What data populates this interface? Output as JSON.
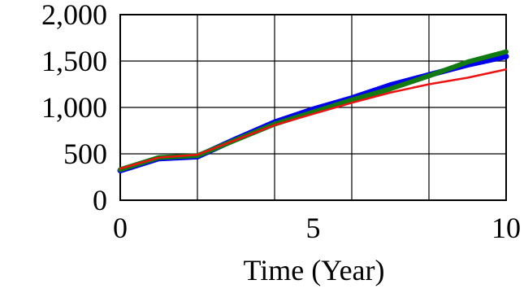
{
  "chart_data": {
    "type": "line",
    "title": "",
    "xlabel": "Time (Year)",
    "ylabel": "",
    "xlim": [
      0,
      10
    ],
    "ylim": [
      0,
      2000
    ],
    "x_ticks": [
      0,
      5,
      10
    ],
    "x_tick_labels": [
      "0",
      "5",
      "10"
    ],
    "y_ticks": [
      0,
      500,
      1000,
      1500,
      2000
    ],
    "y_tick_labels": [
      "0",
      "500",
      "1,000",
      "1,500",
      "2,000"
    ],
    "grid": true,
    "legend": "none",
    "x": [
      0,
      1,
      2,
      3,
      4,
      5,
      6,
      7,
      8,
      9,
      10
    ],
    "series": [
      {
        "color": "#0000ee",
        "values": [
          320,
          450,
          470,
          660,
          840,
          980,
          1100,
          1240,
          1350,
          1460,
          1550
        ]
      },
      {
        "color": "#117a11",
        "values": [
          330,
          460,
          480,
          650,
          820,
          950,
          1080,
          1200,
          1340,
          1490,
          1600
        ]
      },
      {
        "color": "#ee1111",
        "values": [
          340,
          460,
          490,
          650,
          810,
          930,
          1050,
          1160,
          1250,
          1320,
          1410
        ]
      }
    ]
  }
}
